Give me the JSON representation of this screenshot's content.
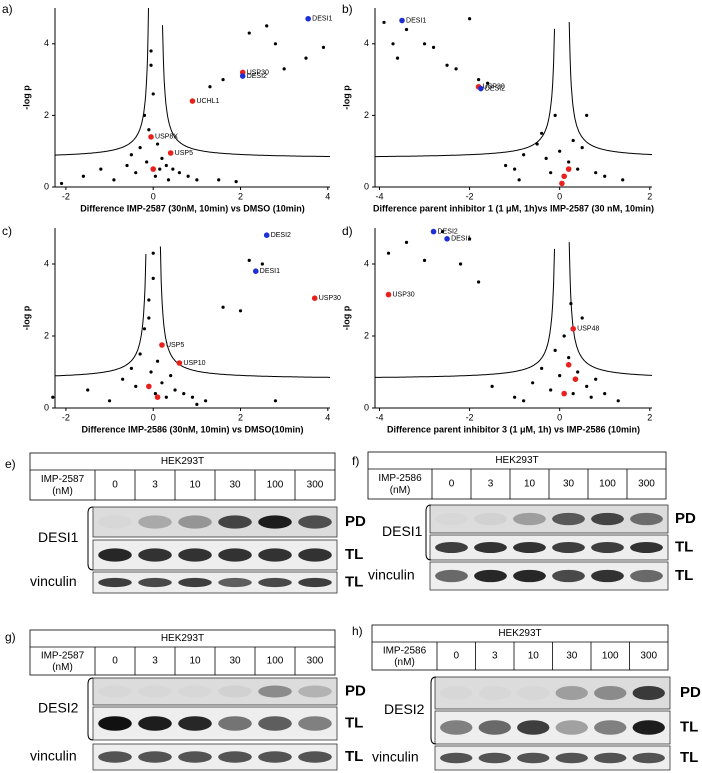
{
  "chart_data": [
    {
      "label": "a)",
      "type": "scatter",
      "xlabel": "Difference IMP-2587 (30nM, 10min) vs DMSO (10min)",
      "ylabel": "-log p",
      "xlim": [
        -2.25,
        4.05
      ],
      "ylim": [
        0,
        5
      ],
      "xticks": [
        -2,
        0,
        2,
        4
      ],
      "yticks": [
        0,
        2,
        4
      ],
      "series": [
        {
          "color": "#000000",
          "x": [
            -1.6,
            -1.2,
            -0.9,
            -0.6,
            -0.5,
            -0.4,
            -0.3,
            -0.2,
            -0.15,
            -0.1,
            -0.05,
            0.05,
            0.1,
            0.15,
            0.2,
            0.3,
            0.35,
            0.45,
            0.6,
            0.8,
            1.0,
            1.3,
            1.6,
            2.2,
            2.8,
            3.0,
            3.5,
            3.9,
            -0.05,
            0.0,
            1.5,
            1.9,
            -2.1,
            2.6
          ],
          "values": [
            0.3,
            0.5,
            0.2,
            0.6,
            0.9,
            0.4,
            1.1,
            2.0,
            0.7,
            1.6,
            3.8,
            0.3,
            1.2,
            0.5,
            0.8,
            0.6,
            0.2,
            0.5,
            0.4,
            0.3,
            0.2,
            2.8,
            3.0,
            4.3,
            4.0,
            3.3,
            3.6,
            3.9,
            3.4,
            2.6,
            0.2,
            0.15,
            0.1,
            4.5
          ]
        },
        {
          "color": "#e8211d",
          "x": [
            2.05,
            0.9,
            -0.05,
            0.4,
            0.0
          ],
          "values": [
            3.2,
            2.4,
            1.4,
            0.95,
            0.5
          ],
          "labels": [
            "USP30",
            "UCHL1",
            "USP8X",
            "USP5",
            null
          ]
        },
        {
          "color": "#1f2fd6",
          "x": [
            3.55,
            2.05
          ],
          "values": [
            4.7,
            3.1
          ],
          "labels": [
            "DESI1",
            "DESI2"
          ]
        }
      ]
    },
    {
      "label": "b)",
      "type": "scatter",
      "xlabel": "Difference parent inhibitor 1 (1 μM, 1h)vs IMP-2587 (30 nM, 10min)",
      "ylabel": "-log p",
      "xlim": [
        -4.1,
        2.05
      ],
      "ylim": [
        0,
        5
      ],
      "xticks": [
        -4,
        -2,
        0,
        2
      ],
      "yticks": [
        0,
        2,
        4
      ],
      "series": [
        {
          "color": "#000000",
          "x": [
            -3.9,
            -3.7,
            -3.6,
            -3.4,
            -3.0,
            -2.8,
            -2.5,
            -2.3,
            -2.0,
            -1.8,
            -1.6,
            -1.2,
            -1.0,
            -0.8,
            -0.5,
            -0.4,
            -0.3,
            -0.2,
            -0.1,
            0.0,
            0.1,
            0.2,
            0.3,
            0.4,
            0.5,
            0.6,
            0.8,
            1.0,
            1.4,
            -0.9
          ],
          "values": [
            4.6,
            4.0,
            3.6,
            4.4,
            4.0,
            3.9,
            3.4,
            3.3,
            4.7,
            3.0,
            2.9,
            0.6,
            0.5,
            0.9,
            1.2,
            1.5,
            0.8,
            0.4,
            2.0,
            1.0,
            0.3,
            0.7,
            1.3,
            0.5,
            1.1,
            2.0,
            0.4,
            0.3,
            0.2,
            0.2
          ]
        },
        {
          "color": "#e8211d",
          "x": [
            -1.8,
            0.1,
            0.05,
            0.2
          ],
          "values": [
            2.8,
            0.3,
            0.1,
            0.5
          ],
          "labels": [
            "USP30",
            null,
            null,
            null
          ]
        },
        {
          "color": "#1f2fd6",
          "x": [
            -3.5,
            -1.75
          ],
          "values": [
            4.65,
            2.75
          ],
          "labels": [
            "DESI1",
            "DESI2"
          ]
        }
      ]
    },
    {
      "label": "c)",
      "type": "scatter",
      "xlabel": "Difference IMP-2586 (30nM, 10min) vs DMSO(10min)",
      "ylabel": "-log p",
      "xlim": [
        -2.25,
        4.05
      ],
      "ylim": [
        0,
        5
      ],
      "xticks": [
        -2,
        0,
        2,
        4
      ],
      "yticks": [
        0,
        2,
        4
      ],
      "series": [
        {
          "color": "#000000",
          "x": [
            -2.3,
            -1.5,
            -1.0,
            -0.7,
            -0.5,
            -0.4,
            -0.3,
            -0.2,
            -0.1,
            -0.05,
            0.0,
            0.05,
            0.1,
            0.2,
            0.3,
            0.4,
            0.5,
            0.7,
            0.9,
            1.2,
            1.6,
            2.0,
            2.2,
            2.5,
            0.0,
            -0.1,
            1.0,
            2.8
          ],
          "values": [
            0.3,
            0.5,
            0.2,
            0.8,
            1.1,
            0.6,
            1.5,
            2.2,
            3.0,
            1.0,
            4.3,
            0.4,
            1.3,
            0.7,
            0.3,
            0.9,
            0.5,
            0.4,
            0.3,
            0.2,
            2.8,
            2.7,
            4.1,
            4.0,
            3.6,
            2.5,
            0.1,
            0.2
          ]
        },
        {
          "color": "#e8211d",
          "x": [
            3.7,
            0.2,
            0.6,
            -0.1,
            0.1
          ],
          "values": [
            3.05,
            1.75,
            1.25,
            0.6,
            0.3
          ],
          "labels": [
            "USP30",
            "USP5",
            "USP10",
            null,
            null
          ]
        },
        {
          "color": "#1f2fd6",
          "x": [
            2.6,
            2.35
          ],
          "values": [
            4.8,
            3.8
          ],
          "labels": [
            "DESI2",
            "DESI1"
          ]
        }
      ]
    },
    {
      "label": "d)",
      "type": "scatter",
      "xlabel": "Difference parent inhibitor 3 (1 μM, 1h) vs IMP-2586 (10min)",
      "ylabel": "-log p",
      "xlim": [
        -4.1,
        2.05
      ],
      "ylim": [
        0,
        5
      ],
      "xticks": [
        -4,
        -2,
        0,
        2
      ],
      "yticks": [
        0,
        2,
        4
      ],
      "series": [
        {
          "color": "#000000",
          "x": [
            -3.8,
            -3.4,
            -3.0,
            -2.6,
            -2.2,
            -2.0,
            -1.8,
            -1.5,
            -1.0,
            -0.6,
            -0.4,
            -0.2,
            -0.1,
            0.0,
            0.1,
            0.2,
            0.3,
            0.4,
            0.5,
            0.6,
            0.7,
            0.8,
            1.0,
            1.3,
            -0.8,
            0.25
          ],
          "values": [
            4.3,
            4.6,
            4.1,
            4.9,
            4.0,
            4.7,
            3.5,
            0.6,
            0.3,
            0.7,
            1.1,
            0.5,
            1.6,
            0.9,
            2.0,
            1.4,
            0.4,
            1.0,
            2.5,
            0.6,
            0.3,
            0.8,
            0.4,
            0.2,
            0.2,
            2.9
          ]
        },
        {
          "color": "#e8211d",
          "x": [
            -3.8,
            0.3,
            0.2,
            0.35,
            0.1
          ],
          "values": [
            3.15,
            2.2,
            1.2,
            0.8,
            0.4
          ],
          "labels": [
            "USP30",
            "USP48",
            null,
            null,
            null
          ]
        },
        {
          "color": "#1f2fd6",
          "x": [
            -2.8,
            -2.5
          ],
          "values": [
            4.9,
            4.7
          ],
          "labels": [
            "DESI2",
            "DESI1"
          ]
        }
      ]
    }
  ],
  "blots": [
    {
      "label": "e)",
      "cell_line": "HEK293T",
      "compound": "IMP-2587",
      "unit": "(nM)",
      "doses": [
        0,
        3,
        10,
        30,
        100,
        300
      ],
      "target": "DESI1",
      "rows": [
        "PD",
        "TL"
      ],
      "loading": "vinculin",
      "loading_fraction": "TL",
      "intensity": {
        "PD": [
          0.02,
          0.25,
          0.35,
          0.75,
          0.95,
          0.7
        ],
        "TL": [
          0.9,
          0.85,
          0.85,
          0.85,
          0.85,
          0.85
        ],
        "loading": [
          0.8,
          0.75,
          0.8,
          0.65,
          0.75,
          0.8
        ]
      }
    },
    {
      "label": "f)",
      "cell_line": "HEK293T",
      "compound": "IMP-2586",
      "unit": "(nM)",
      "doses": [
        0,
        3,
        10,
        30,
        100,
        300
      ],
      "target": "DESI1",
      "rows": [
        "PD",
        "TL"
      ],
      "loading": "vinculin",
      "loading_fraction": "TL",
      "intensity": {
        "PD": [
          0.02,
          0.05,
          0.3,
          0.65,
          0.75,
          0.55
        ],
        "TL": [
          0.8,
          0.85,
          0.85,
          0.8,
          0.8,
          0.85
        ],
        "loading": [
          0.6,
          0.9,
          0.9,
          0.75,
          0.85,
          0.6
        ]
      }
    },
    {
      "label": "g)",
      "cell_line": "HEK293T",
      "compound": "IMP-2587",
      "unit": "(nM)",
      "doses": [
        0,
        3,
        10,
        30,
        100,
        300
      ],
      "target": "DESI2",
      "rows": [
        "PD",
        "TL"
      ],
      "loading": "vinculin",
      "loading_fraction": "TL",
      "intensity": {
        "PD": [
          0.02,
          0.02,
          0.02,
          0.05,
          0.4,
          0.2
        ],
        "TL": [
          1.0,
          0.95,
          0.9,
          0.55,
          0.65,
          0.5
        ],
        "loading": [
          0.7,
          0.7,
          0.7,
          0.7,
          0.7,
          0.7
        ]
      }
    },
    {
      "label": "h)",
      "cell_line": "HEK293T",
      "compound": "IMP-2586",
      "unit": "(nM)",
      "doses": [
        0,
        3,
        10,
        30,
        100,
        300
      ],
      "target": "DESI2",
      "rows": [
        "PD",
        "TL"
      ],
      "loading": "vinculin",
      "loading_fraction": "TL",
      "intensity": {
        "PD": [
          0.02,
          0.02,
          0.02,
          0.3,
          0.4,
          0.8
        ],
        "TL": [
          0.5,
          0.6,
          0.8,
          0.35,
          0.5,
          0.95
        ],
        "loading": [
          0.7,
          0.7,
          0.7,
          0.7,
          0.7,
          0.7
        ]
      }
    }
  ]
}
